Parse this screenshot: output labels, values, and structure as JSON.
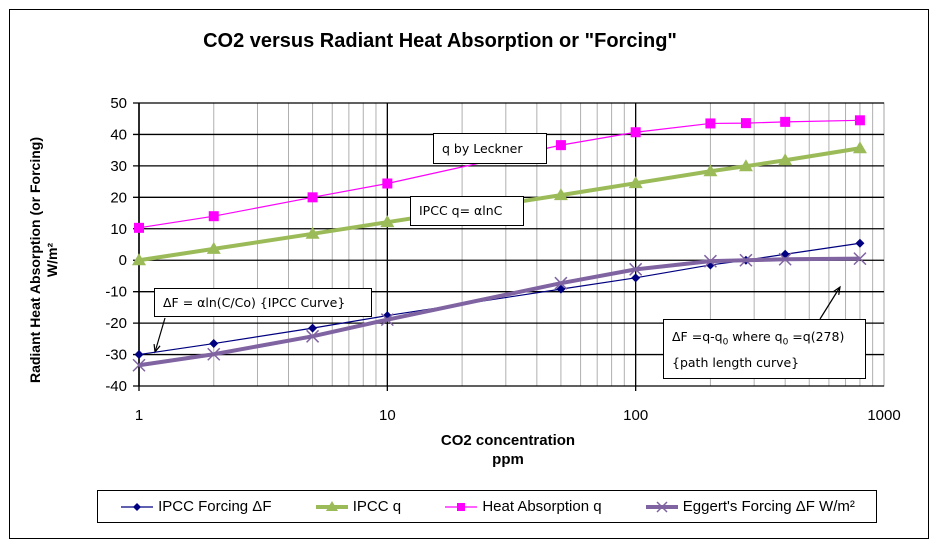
{
  "chart_data": {
    "type": "line",
    "title": "CO2 versus Radiant Heat Absorption or \"Forcing\"",
    "xlabel": "CO2 concentration",
    "xlabel_units": "ppm",
    "ylabel": "Radiant Heat Absorption  (or Forcing)",
    "ylabel_units": "W/m²",
    "x_scale": "log",
    "xlim": [
      1,
      1000
    ],
    "ylim": [
      -40,
      50
    ],
    "x_ticks": [
      1,
      10,
      100,
      1000
    ],
    "x_tick_labels": [
      "1",
      "10",
      "100",
      "1000"
    ],
    "y_ticks": [
      -40,
      -30,
      -20,
      -10,
      0,
      10,
      20,
      30,
      40,
      50
    ],
    "y_tick_labels": [
      "-40",
      "-30",
      "-20",
      "-10",
      "0",
      "10",
      "20",
      "30",
      "40",
      "50"
    ],
    "grid": "major and minor",
    "legend_position": "bottom",
    "x": [
      1,
      2,
      5,
      10,
      50,
      100,
      200,
      278,
      400,
      800
    ],
    "series": [
      {
        "name": "IPCC Forcing ΔF",
        "color": "#000080",
        "marker": "diamond",
        "values": [
          -30.0,
          -26.5,
          -21.6,
          -17.6,
          -9.2,
          -5.6,
          -1.5,
          0.0,
          1.9,
          5.4
        ]
      },
      {
        "name": "IPCC q",
        "color": "#9BBB59",
        "marker": "triangle",
        "values": [
          0.0,
          3.6,
          8.4,
          12.1,
          20.7,
          24.5,
          28.3,
          29.9,
          31.8,
          35.6
        ]
      },
      {
        "name": "Heat Absorption q",
        "color": "#FF00FF",
        "marker": "square",
        "values": [
          10.3,
          14.0,
          20.0,
          24.4,
          36.6,
          40.7,
          43.5,
          43.6,
          44.0,
          44.5
        ]
      },
      {
        "name": "Eggert's Forcing ΔF W/m²",
        "color": "#8064A2",
        "marker": "x",
        "values": [
          -33.4,
          -29.9,
          -24.2,
          -18.9,
          -7.3,
          -2.9,
          -0.3,
          0.0,
          0.3,
          0.5
        ]
      }
    ],
    "annotations": [
      {
        "id": "leckner",
        "text": "q by Leckner"
      },
      {
        "id": "ipccq",
        "text": "IPCC q= αlnC"
      },
      {
        "id": "ipcc_curve",
        "text": "ΔF = αln(C/Co) {IPCC Curve}"
      },
      {
        "id": "path_curve",
        "line1_a": "ΔF =q-q",
        "line1_sub1": "0",
        "line1_b": " where q",
        "line1_sub2": "0",
        "line1_c": " =q(278)",
        "line2": "{path length curve}"
      }
    ]
  }
}
